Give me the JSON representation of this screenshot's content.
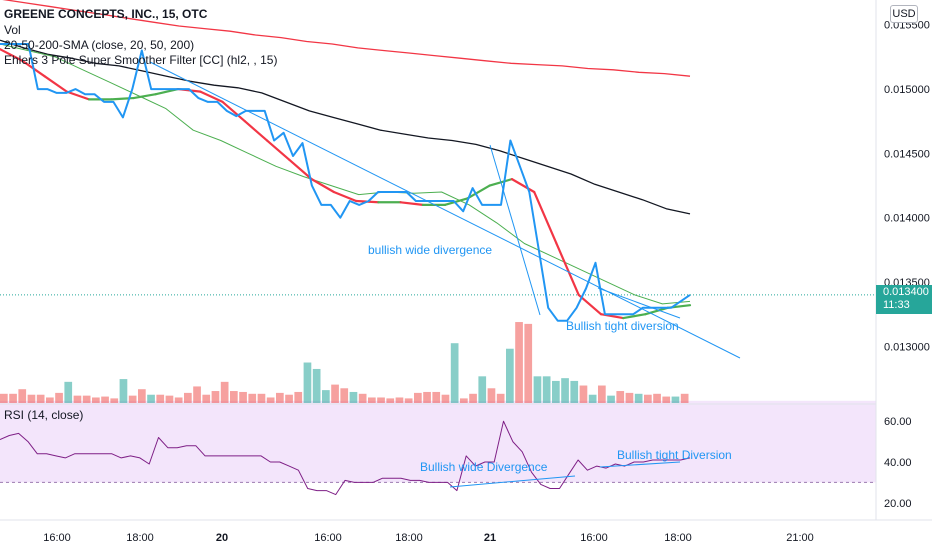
{
  "header": {
    "symbol_line": "GREENE CONCEPTS, INC., 15, OTC",
    "vol_label": "Vol",
    "sma_label": "20-50-200-SMA (close, 20, 50, 200)",
    "ehlers_label": "Ehlers 3 Pole Super Smoother Filter [CC] (hl2, , 15)"
  },
  "currency_button": "USD",
  "last_price": {
    "value": "0.013400",
    "countdown": "11:33"
  },
  "annotations": {
    "wide": "bullish wide divergence",
    "tight": "Bullish tight diversion",
    "rsi_wide": "Bullish wide Divergence",
    "rsi_tight": "Bullish tight Diversion"
  },
  "rsi_title": "RSI (14, close)",
  "colors": {
    "price": "#2196f3",
    "sma200": "#f23645",
    "sma50": "#131722",
    "sma20": "#4caf50",
    "ehlers_down": "#f23645",
    "ehlers_up": "#4caf50",
    "vol_up": "#26a69a",
    "vol_down": "#ef5350",
    "rsi": "#7e1f86",
    "rsi_band": "#f3e5fb",
    "trend": "#2196f3"
  },
  "chart_data": [
    {
      "type": "line",
      "title": "GREENE CONCEPTS, INC., 15, OTC",
      "price_axis_ticks": [
        "0.015500",
        "0.015000",
        "0.014500",
        "0.014000",
        "0.013500",
        "0.013000"
      ],
      "ylim": [
        0.01256,
        0.01563
      ],
      "x_tick_labels": [
        "16:00",
        "18:00",
        "20",
        "16:00",
        "18:00",
        "21",
        "16:00",
        "18:00",
        "21:00"
      ],
      "bars": 84,
      "series": [
        {
          "name": "Price",
          "values": [
            0.01535,
            0.01535,
            0.01535,
            0.01535,
            0.015,
            0.015,
            0.01497,
            0.01497,
            0.015,
            0.01496,
            0.01496,
            0.0149,
            0.0149,
            0.01478,
            0.015,
            0.0153,
            0.015,
            0.015,
            0.015,
            0.015,
            0.015,
            0.01493,
            0.0149,
            0.0149,
            0.01483,
            0.01479,
            0.01483,
            0.01483,
            0.01483,
            0.0146,
            0.01466,
            0.01448,
            0.01458,
            0.01425,
            0.0141,
            0.0141,
            0.014,
            0.01413,
            0.0141,
            0.01413,
            0.0142,
            0.0142,
            0.0142,
            0.0142,
            0.01413,
            0.01413,
            0.01413,
            0.01413,
            0.01413,
            0.01405,
            0.01423,
            0.0141,
            0.0141,
            0.0141,
            0.0146,
            0.0144,
            0.0142,
            0.01375,
            0.0133,
            0.0132,
            0.0132,
            0.0133,
            0.01345,
            0.01365,
            0.01325,
            0.01325,
            0.01325,
            0.01325,
            0.0133,
            0.0133,
            0.0133,
            0.0133,
            0.01335,
            0.0134
          ]
        },
        {
          "name": "SMA 200",
          "values": [
            0.0157,
            0.01567,
            0.01564,
            0.01561,
            0.01558,
            0.01555,
            0.01552,
            0.01549,
            0.01547,
            0.01545,
            0.01542,
            0.0154,
            0.01537,
            0.01535,
            0.01532,
            0.0153,
            0.01528,
            0.01526,
            0.01524,
            0.01522,
            0.0152,
            0.01519,
            0.01518,
            0.01516,
            0.01515,
            0.01513,
            0.01512,
            0.0151
          ]
        },
        {
          "name": "SMA 50",
          "values": [
            0.01538,
            0.01532,
            0.01527,
            0.01524,
            0.0152,
            0.01518,
            0.01514,
            0.0151,
            0.01506,
            0.01503,
            0.01501,
            0.01497,
            0.0149,
            0.01483,
            0.01478,
            0.01473,
            0.01468,
            0.01465,
            0.01462,
            0.0146,
            0.01457,
            0.01452,
            0.01446,
            0.0144,
            0.01434,
            0.01426,
            0.0142,
            0.01414,
            0.01407,
            0.01403
          ]
        },
        {
          "name": "SMA 20",
          "values": [
            0.01535,
            0.0153,
            0.01525,
            0.01515,
            0.01505,
            0.01495,
            0.01485,
            0.01468,
            0.0146,
            0.0145,
            0.0144,
            0.01432,
            0.01425,
            0.01418,
            0.0142,
            0.01419,
            0.0142,
            0.0141,
            0.01396,
            0.0138,
            0.0137,
            0.0136,
            0.0135,
            0.0134,
            0.01333,
            0.01335
          ]
        },
        {
          "name": "Ehlers",
          "values": [
            0.01531,
            0.01522,
            0.0151,
            0.01498,
            0.01492,
            0.01492,
            0.01493,
            0.01496,
            0.015,
            0.01498,
            0.0149,
            0.01475,
            0.0146,
            0.01445,
            0.0143,
            0.0142,
            0.01413,
            0.01412,
            0.01412,
            0.0141,
            0.0141,
            0.01415,
            0.01425,
            0.0143,
            0.0142,
            0.0138,
            0.0134,
            0.01325,
            0.01322,
            0.01325,
            0.0133,
            0.01332
          ]
        }
      ]
    },
    {
      "type": "bar",
      "title": "Vol",
      "values": [
        1,
        1,
        1.5,
        0.9,
        0.9,
        0.6,
        1.1,
        2.3,
        0.8,
        0.8,
        0.6,
        0.7,
        0.5,
        2.6,
        0.8,
        1.5,
        0.9,
        0.9,
        0.8,
        0.6,
        1.1,
        1.8,
        0.9,
        1.3,
        2.3,
        1.3,
        1.2,
        1,
        1,
        0.6,
        1.1,
        0.9,
        1.2,
        4.4,
        3.7,
        1.4,
        2,
        1.6,
        1.2,
        1,
        0.6,
        0.6,
        0.5,
        0.6,
        0.5,
        1.1,
        1.2,
        1.2,
        0.9,
        6.5,
        0.5,
        1,
        2.9,
        1.6,
        1,
        5.9,
        8.8,
        8.6,
        2.9,
        2.9,
        2.4,
        2.7,
        2.4,
        1.9,
        0.9,
        1.9,
        0.8,
        1.3,
        1.1,
        1,
        0.9,
        1,
        0.7,
        0.7,
        1
      ]
    },
    {
      "type": "line",
      "title": "RSI (14, close)",
      "axis_ticks": [
        "60.00",
        "40.00",
        "20.00"
      ],
      "ylim": [
        15,
        65
      ],
      "band": [
        30,
        70
      ],
      "values": [
        51,
        53,
        54,
        50,
        44,
        44,
        43,
        42,
        44,
        44,
        44,
        44,
        44,
        42,
        43,
        42,
        39,
        52,
        47,
        47,
        48,
        48,
        43,
        43,
        43,
        43,
        43,
        43,
        43,
        40,
        40,
        38,
        36,
        27,
        26,
        26,
        24,
        31,
        30,
        30,
        30,
        32,
        32,
        32,
        31,
        31,
        30,
        30,
        30,
        26,
        43,
        38,
        40,
        40,
        60,
        50,
        45,
        35,
        29,
        27,
        27,
        34,
        41,
        36,
        38,
        37,
        39,
        38,
        40,
        40,
        41,
        41,
        41,
        41,
        42
      ]
    }
  ]
}
